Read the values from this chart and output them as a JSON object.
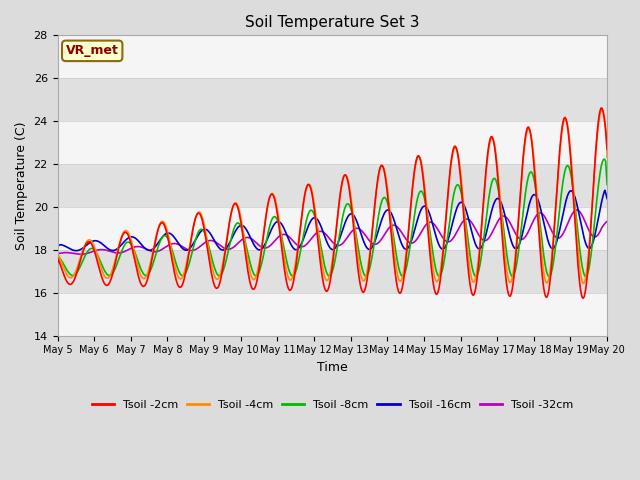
{
  "title": "Soil Temperature Set 3",
  "xlabel": "Time",
  "ylabel": "Soil Temperature (C)",
  "ylim": [
    14,
    28
  ],
  "yticks": [
    14,
    16,
    18,
    20,
    22,
    24,
    26,
    28
  ],
  "annotation_text": "VR_met",
  "annotation_color": "#8B0000",
  "annotation_bg": "#FFFFCC",
  "colors": {
    "Tsoil -2cm": "#FF0000",
    "Tsoil -4cm": "#FF8C00",
    "Tsoil -8cm": "#00BB00",
    "Tsoil -16cm": "#0000CC",
    "Tsoil -32cm": "#BB00BB"
  },
  "line_width": 1.2,
  "bg_color": "#E0E0E0",
  "plot_bg": "#DCDCDC",
  "band_color_light": "#F0F0F0",
  "band_color_dark": "#DCDCDC",
  "n_days": 15,
  "start_day": 5
}
